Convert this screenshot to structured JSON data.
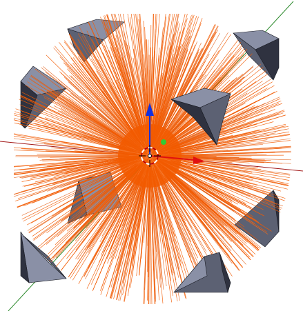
{
  "viewport": {
    "background": "#ffffff",
    "scene": "particle-hair-emitter-with-corner-pyramids"
  },
  "colors": {
    "hair": "#f25a00",
    "hair_dim": "#e46a28",
    "mesh_face": "#5c6173",
    "mesh_face_dark": "#2f3240",
    "mesh_face_light": "#8a90a6",
    "mesh_edge": "#1a1c24",
    "axis_x": "#a21818",
    "axis_y": "#2e8b2e",
    "gizmo_x": "#e01010",
    "gizmo_z": "#1030e0",
    "origin_dot": "#33cc33",
    "cursor_ring_a": "#ffffff",
    "cursor_ring_b": "#c00000"
  },
  "icons": {
    "cursor": "3d-cursor-icon",
    "origin": "object-origin-icon",
    "gizmo_x": "transform-gizmo-x-arrow-icon",
    "gizmo_z": "transform-gizmo-z-arrow-icon"
  }
}
